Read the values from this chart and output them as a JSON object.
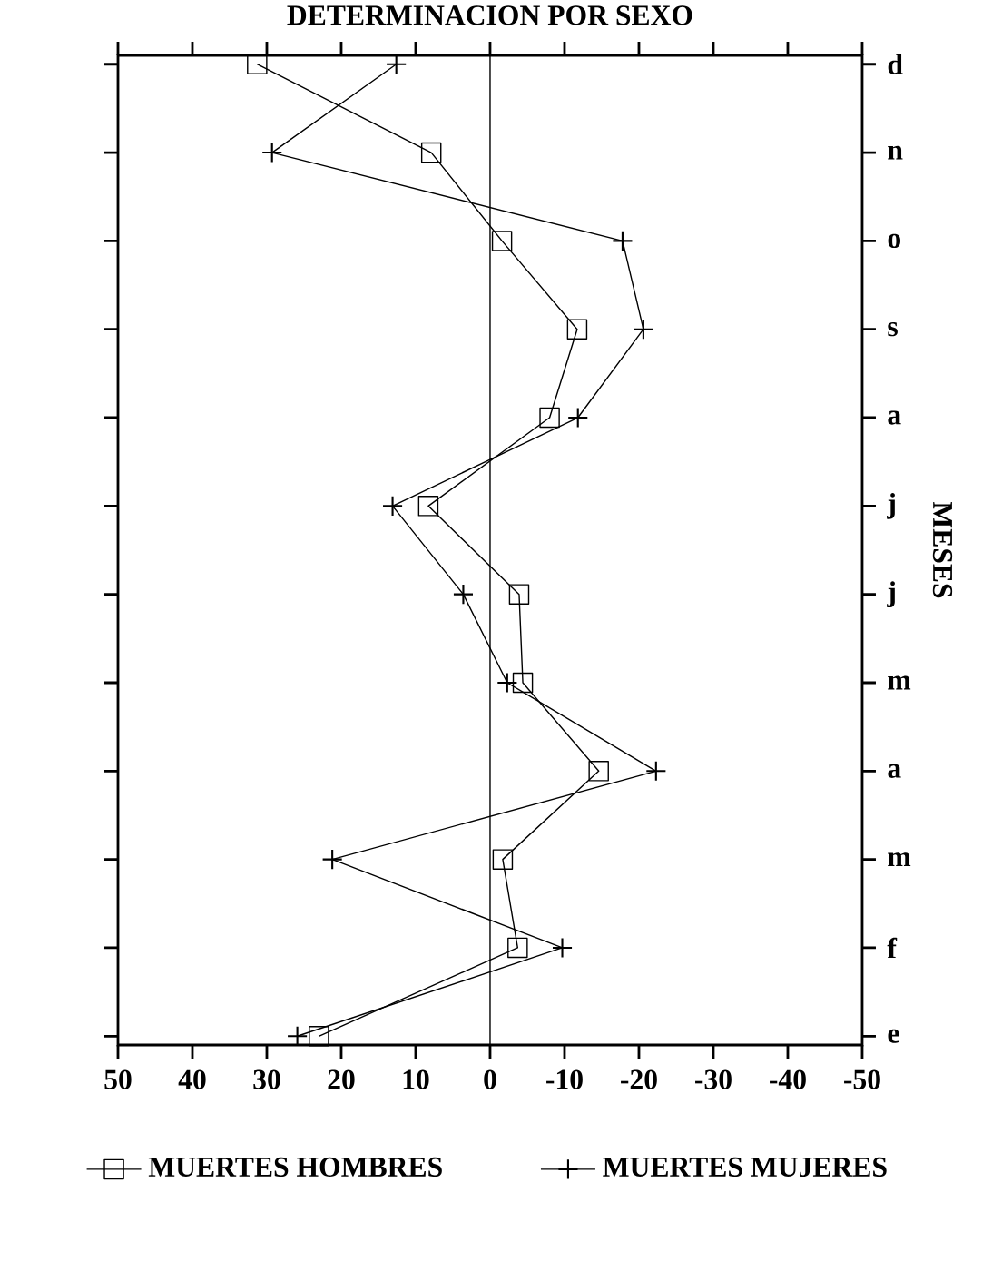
{
  "chart_data": {
    "type": "line",
    "title": "DETERMINACION POR SEXO",
    "orientation": "horizontal",
    "ylabel": "MESES",
    "categories": [
      "d",
      "n",
      "o",
      "s",
      "a",
      "j",
      "j",
      "m",
      "a",
      "m",
      "f",
      "e"
    ],
    "series": [
      {
        "name": "MUERTES HOMBRES",
        "color": "#000000",
        "marker": "square",
        "values": [
          31.3,
          7.9,
          -1.6,
          -11.7,
          -8.0,
          8.3,
          -3.9,
          -4.4,
          -14.6,
          -1.7,
          -3.7,
          23.0
        ]
      },
      {
        "name": "MUERTES MUJERES",
        "color": "#000000",
        "marker": "cross",
        "values": [
          12.6,
          29.3,
          -17.8,
          -20.6,
          -11.8,
          13.1,
          3.6,
          -2.3,
          -22.3,
          21.2,
          -9.7,
          25.9
        ]
      }
    ],
    "xlim": [
      50,
      -50
    ],
    "xticks": [
      50,
      40,
      30,
      20,
      10,
      0,
      -10,
      -20,
      -30,
      -40,
      -50
    ],
    "ref_lines": [
      {
        "axis": "x",
        "value": 0,
        "color": "#000000"
      }
    ],
    "legend": "bottom",
    "grid": false,
    "line_style": "solid"
  }
}
